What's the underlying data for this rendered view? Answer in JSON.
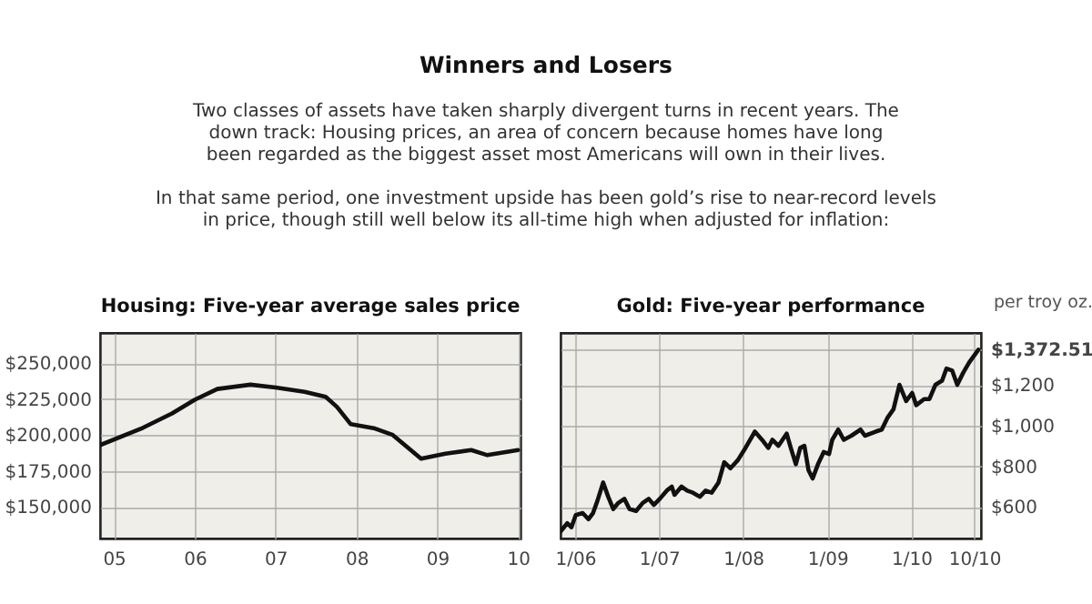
{
  "chart_data": [
    {
      "type": "other",
      "title": "Winners and Losers",
      "annotations": [
        "Two classes of assets have taken sharply divergent turns in recent years. The down track: Housing prices, an area of concern because homes have long been regarded as the biggest asset most Americans will own in their lives.",
        "In that same period, one investment upside has been gold’s rise to near-record levels in price, though still well below its all-time high when adjusted for inflation:"
      ]
    },
    {
      "type": "line",
      "title": "Housing: Five-year average sales price",
      "x": [
        2004.83,
        2005.36,
        2005.72,
        2006.0,
        2006.28,
        2006.69,
        2007.0,
        2007.36,
        2007.62,
        2007.76,
        2007.93,
        2008.23,
        2008.45,
        2008.8,
        2009.1,
        2009.42,
        2009.62,
        2010.0
      ],
      "series": [
        {
          "color": "#111111",
          "values": [
            193000,
            205000,
            215000,
            224500,
            232000,
            235000,
            233000,
            230000,
            226500,
            219500,
            207500,
            204500,
            200000,
            183500,
            187000,
            189500,
            186000,
            189500
          ]
        }
      ],
      "xlim": [
        2004.83,
        2010.03
      ],
      "xticks": [
        {
          "value": 2005,
          "label": "05"
        },
        {
          "value": 2006,
          "label": "06"
        },
        {
          "value": 2007,
          "label": "07"
        },
        {
          "value": 2008,
          "label": "08"
        },
        {
          "value": 2009,
          "label": "09"
        },
        {
          "value": 2010,
          "label": "10"
        }
      ],
      "ylim": [
        128000,
        271000
      ],
      "yticks": [
        {
          "value": 150000,
          "label": "$150,000"
        },
        {
          "value": 175000,
          "label": "$175,000"
        },
        {
          "value": 200000,
          "label": "$200,000"
        },
        {
          "value": 225000,
          "label": "$225,000"
        },
        {
          "value": 250000,
          "label": "$250,000"
        }
      ],
      "grid": true,
      "line_style": "solid"
    },
    {
      "type": "line",
      "title": "Gold: Five-year performance",
      "y2label": "per troy oz.",
      "x": [
        "2005-10-30",
        "2005-11-28",
        "2005-12-16",
        "2006-01-04",
        "2006-02-03",
        "2006-02-28",
        "2006-03-20",
        "2006-04-08",
        "2006-05-03",
        "2006-05-25",
        "2006-06-16",
        "2006-07-08",
        "2006-08-03",
        "2006-08-25",
        "2006-09-23",
        "2006-10-22",
        "2006-11-17",
        "2006-12-09",
        "2007-01-04",
        "2007-02-03",
        "2007-02-25",
        "2007-03-09",
        "2007-04-08",
        "2007-05-03",
        "2007-05-28",
        "2007-06-27",
        "2007-07-22",
        "2007-08-17",
        "2007-09-16",
        "2007-10-11",
        "2007-11-07",
        "2007-12-09",
        "2008-01-11",
        "2008-02-21",
        "2008-03-23",
        "2008-04-19",
        "2008-05-07",
        "2008-06-02",
        "2008-07-08",
        "2008-07-26",
        "2008-08-17",
        "2008-09-05",
        "2008-09-23",
        "2008-10-11",
        "2008-10-29",
        "2008-11-21",
        "2008-12-16",
        "2009-01-08",
        "2009-01-22",
        "2009-02-17",
        "2009-03-13",
        "2009-04-15",
        "2009-05-25",
        "2009-06-13",
        "2009-07-29",
        "2009-08-25",
        "2009-09-20",
        "2009-10-15",
        "2009-11-10",
        "2009-12-09",
        "2010-01-04",
        "2010-01-22",
        "2010-02-25",
        "2010-03-20",
        "2010-04-15",
        "2010-05-14",
        "2010-06-02",
        "2010-06-27",
        "2010-07-19",
        "2010-08-14",
        "2010-09-09",
        "2010-10-19"
      ],
      "series": [
        {
          "color": "#111111",
          "axis": "y2",
          "values": [
            480,
            520,
            500,
            560,
            570,
            540,
            570,
            630,
            720,
            650,
            590,
            620,
            640,
            590,
            580,
            620,
            640,
            610,
            640,
            680,
            700,
            660,
            700,
            680,
            670,
            650,
            680,
            670,
            720,
            820,
            790,
            830,
            890,
            970,
            930,
            890,
            930,
            900,
            960,
            890,
            810,
            890,
            900,
            780,
            740,
            810,
            870,
            860,
            930,
            980,
            930,
            950,
            980,
            950,
            970,
            980,
            1040,
            1080,
            1200,
            1120,
            1160,
            1100,
            1130,
            1130,
            1200,
            1220,
            1280,
            1270,
            1200,
            1260,
            1310,
            1372.51
          ]
        }
      ],
      "xlim": [
        "2005-10-30",
        "2010-10-30"
      ],
      "xticks": [
        {
          "value": "2006-01-01",
          "label": "1/06"
        },
        {
          "value": "2007-01-01",
          "label": "1/07"
        },
        {
          "value": "2008-01-01",
          "label": "1/08"
        },
        {
          "value": "2009-01-01",
          "label": "1/09"
        },
        {
          "value": "2010-01-01",
          "label": "1/10"
        },
        {
          "value": "2010-10-01",
          "label": "10/10"
        }
      ],
      "y2lim": [
        445,
        1455
      ],
      "y2ticks": [
        {
          "value": 600,
          "label": "$600"
        },
        {
          "value": 800,
          "label": "$800"
        },
        {
          "value": 1000,
          "label": "$1,000"
        },
        {
          "value": 1200,
          "label": "$1,200"
        },
        {
          "value": 1372.51,
          "label": "$1,372.51"
        }
      ],
      "grid": true,
      "line_style": "solid"
    }
  ]
}
